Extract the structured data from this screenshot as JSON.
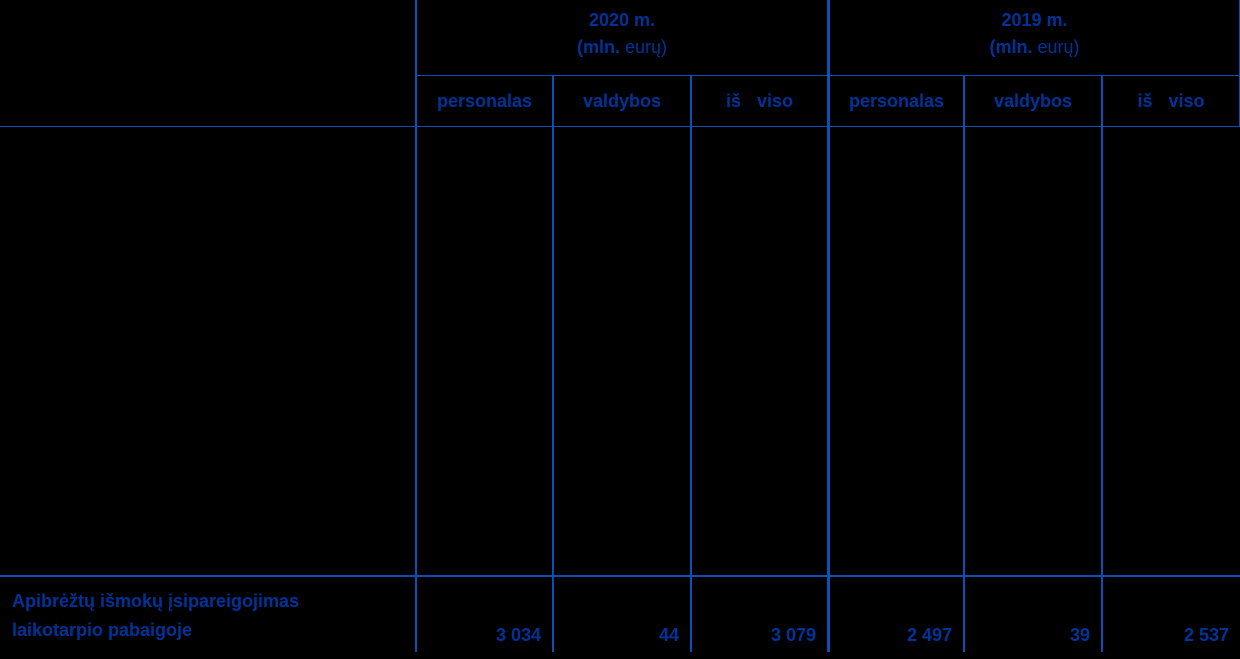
{
  "page": {
    "background": "#000000"
  },
  "table": {
    "colors": {
      "text": "#003399",
      "grid_line": "#0a50b5"
    },
    "year_groups": [
      {
        "title": "2020 m.",
        "unit_prefix": "(mln.",
        "unit_suffix": "eurų)"
      },
      {
        "title": "2019 m.",
        "unit_prefix": "(mln.",
        "unit_suffix": "eurų)"
      }
    ],
    "subheaders": [
      "personalas",
      "valdybos",
      "iš viso"
    ],
    "rows": [
      {
        "label_line1": "Apibrėžtų išmokų įsipareigojimas",
        "label_line2": "laikotarpio pabaigoje",
        "values": [
          "3 034",
          "44",
          "3 079",
          "2 497",
          "39",
          "2 537"
        ]
      }
    ]
  }
}
